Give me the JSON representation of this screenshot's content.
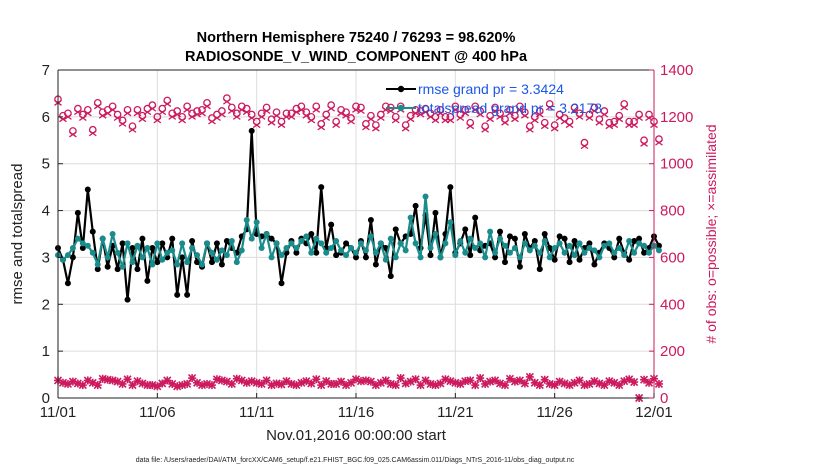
{
  "chart_data": {
    "type": "line",
    "title": [
      "Northern Hemisphere 75240 / 76293 = 98.620%",
      "RADIOSONDE_V_WIND_COMPONENT @ 400 hPa"
    ],
    "xlabel": "Nov.01,2016 00:00:00 start",
    "ylabel": "rmse and totalspread",
    "ylabel_right": "# of obs: o=possible; ×=assimilated",
    "footer": "data file: /Users/raeder/DAI/ATM_forcXX/CAM6_setup/f.e21.FHIST_BGC.f09_025.CAM6assim.011/Diags_NTrS_2016-11/obs_diag_output.nc",
    "x_range": [
      0,
      30
    ],
    "x_ticks": [
      0,
      5,
      10,
      15,
      20,
      25,
      30
    ],
    "x_tick_labels": [
      "11/01",
      "11/06",
      "11/11",
      "11/16",
      "11/21",
      "11/26",
      "12/01"
    ],
    "ylim": [
      0,
      7
    ],
    "y_ticks": [
      0,
      1,
      2,
      3,
      4,
      5,
      6,
      7
    ],
    "ylim_right": [
      0,
      1400
    ],
    "y_ticks_right": [
      0,
      200,
      400,
      600,
      800,
      1000,
      1200,
      1400
    ],
    "grid": true,
    "legend": [
      {
        "name": "rmse grand pr = 3.3424",
        "color": "#000000"
      },
      {
        "name": "totalspread grand pr = 3.2178",
        "color": "#1a8c8c"
      }
    ],
    "colors": {
      "rmse": "#000000",
      "spread": "#1a8c8c",
      "obs": "#cc1a5e",
      "legend_text": "#1a56e8"
    },
    "time_step": 0.25,
    "series": [
      {
        "name": "rmse",
        "values": [
          3.2,
          2.95,
          2.45,
          3.0,
          3.95,
          3.2,
          4.45,
          3.55,
          2.75,
          3.4,
          2.8,
          3.25,
          2.75,
          3.3,
          2.1,
          3.2,
          2.75,
          3.4,
          2.5,
          3.2,
          2.9,
          3.3,
          3.0,
          3.4,
          2.2,
          3.0,
          2.2,
          3.35,
          2.9,
          2.8,
          3.3,
          2.9,
          3.3,
          2.85,
          3.35,
          3.2,
          3.1,
          3.45,
          3.6,
          5.7,
          3.5,
          3.45,
          3.5,
          3.4,
          3.3,
          2.45,
          3.1,
          3.35,
          3.1,
          3.4,
          3.3,
          3.5,
          3.1,
          4.5,
          3.2,
          3.7,
          3.05,
          3.1,
          3.3,
          3.2,
          3.0,
          3.35,
          3.0,
          3.8,
          2.85,
          3.3,
          3.2,
          2.6,
          3.6,
          3.3,
          3.45,
          3.5,
          4.1,
          3.2,
          3.9,
          3.05,
          3.95,
          3.0,
          3.5,
          4.5,
          3.1,
          3.3,
          3.6,
          3.05,
          3.85,
          3.15,
          3.25,
          3.3,
          3.0,
          3.55,
          2.9,
          3.45,
          3.4,
          2.8,
          3.5,
          3.2,
          3.35,
          2.75,
          3.5,
          3.2,
          2.95,
          3.45,
          3.4,
          2.9,
          3.35,
          2.95,
          3.2,
          3.3,
          2.85,
          3.1,
          3.3,
          3.2,
          3.0,
          3.4,
          3.1,
          2.95,
          3.35,
          3.4,
          3.1,
          3.2,
          3.45,
          3.25
        ]
      },
      {
        "name": "totalspread",
        "values": [
          3.05,
          2.95,
          3.05,
          3.2,
          3.4,
          3.3,
          3.25,
          3.1,
          2.85,
          3.4,
          3.0,
          3.5,
          3.1,
          2.8,
          3.3,
          2.9,
          3.25,
          3.0,
          3.2,
          2.85,
          3.3,
          2.95,
          3.1,
          3.15,
          2.85,
          3.3,
          2.9,
          3.2,
          3.05,
          2.85,
          3.3,
          3.1,
          2.95,
          3.15,
          3.05,
          3.35,
          2.9,
          3.15,
          3.8,
          3.4,
          3.75,
          3.2,
          3.5,
          3.0,
          3.3,
          3.05,
          3.2,
          3.3,
          3.2,
          3.35,
          3.45,
          3.1,
          3.4,
          3.3,
          3.1,
          3.2,
          3.35,
          3.15,
          3.05,
          3.2,
          3.1,
          3.3,
          3.15,
          3.45,
          3.1,
          3.3,
          2.95,
          3.4,
          3.0,
          3.3,
          3.15,
          3.85,
          3.3,
          3.0,
          4.3,
          3.2,
          3.5,
          3.0,
          3.3,
          3.75,
          3.05,
          3.35,
          3.1,
          3.4,
          3.2,
          3.3,
          3.0,
          3.55,
          3.1,
          3.4,
          3.25,
          3.1,
          3.2,
          3.0,
          3.3,
          3.15,
          3.25,
          3.1,
          3.35,
          3.0,
          3.2,
          3.3,
          3.1,
          3.25,
          3.05,
          3.3,
          3.1,
          3.2,
          3.15,
          3.0,
          3.25,
          3.3,
          3.1,
          3.2,
          3.05,
          3.35,
          3.1,
          3.3,
          3.25,
          3.1,
          3.25,
          3.15
        ]
      },
      {
        "name": "obs_possible",
        "axis": "right",
        "values": [
          1275,
          1205,
          1215,
          1140,
          1235,
          1210,
          1230,
          1145,
          1260,
          1220,
          1230,
          1245,
          1210,
          1185,
          1230,
          1160,
          1230,
          1205,
          1235,
          1250,
          1200,
          1235,
          1270,
          1215,
          1225,
          1200,
          1245,
          1215,
          1225,
          1230,
          1260,
          1195,
          1210,
          1225,
          1280,
          1240,
          1215,
          1245,
          1235,
          1210,
          1180,
          1215,
          1240,
          1190,
          1220,
          1180,
          1215,
          1215,
          1235,
          1245,
          1220,
          1200,
          1245,
          1170,
          1210,
          1250,
          1180,
          1230,
          1220,
          1195,
          1245,
          1240,
          1170,
          1205,
          1165,
          1210,
          1245,
          1240,
          1200,
          1245,
          1165,
          1205,
          1230,
          1225,
          1235,
          1215,
          1200,
          1230,
          1200,
          1200,
          1245,
          1210,
          1230,
          1175,
          1245,
          1225,
          1160,
          1205,
          1240,
          1215,
          1190,
          1230,
          1205,
          1245,
          1220,
          1160,
          1200,
          1225,
          1175,
          1255,
          1165,
          1210,
          1195,
          1180,
          1240,
          1215,
          1090,
          1210,
          1240,
          1190,
          1225,
          1175,
          1180,
          1205,
          1255,
          1180,
          1180,
          1210,
          1100,
          1210,
          1180,
          1105
        ]
      },
      {
        "name": "obs_assimilated",
        "axis": "right",
        "values": [
          75,
          65,
          60,
          70,
          62,
          55,
          75,
          65,
          55,
          82,
          78,
          75,
          70,
          60,
          80,
          55,
          72,
          62,
          55,
          55,
          50,
          62,
          75,
          60,
          50,
          55,
          60,
          85,
          65,
          55,
          60,
          55,
          80,
          75,
          70,
          60,
          82,
          75,
          65,
          72,
          65,
          60,
          75,
          55,
          62,
          58,
          72,
          60,
          55,
          65,
          72,
          62,
          80,
          55,
          72,
          60,
          60,
          70,
          55,
          65,
          80,
          72,
          75,
          70,
          55,
          65,
          75,
          60,
          55,
          85,
          62,
          70,
          80,
          55,
          75,
          60,
          55,
          62,
          80,
          72,
          65,
          60,
          72,
          75,
          55,
          85,
          60,
          70,
          75,
          62,
          55,
          82,
          70,
          75,
          62,
          90,
          65,
          55,
          78,
          60,
          55,
          70,
          62,
          55,
          65,
          75,
          55,
          60,
          72,
          62,
          55,
          72,
          65,
          55,
          72,
          80,
          68,
          0,
          78,
          65,
          82,
          60
        ]
      }
    ]
  }
}
